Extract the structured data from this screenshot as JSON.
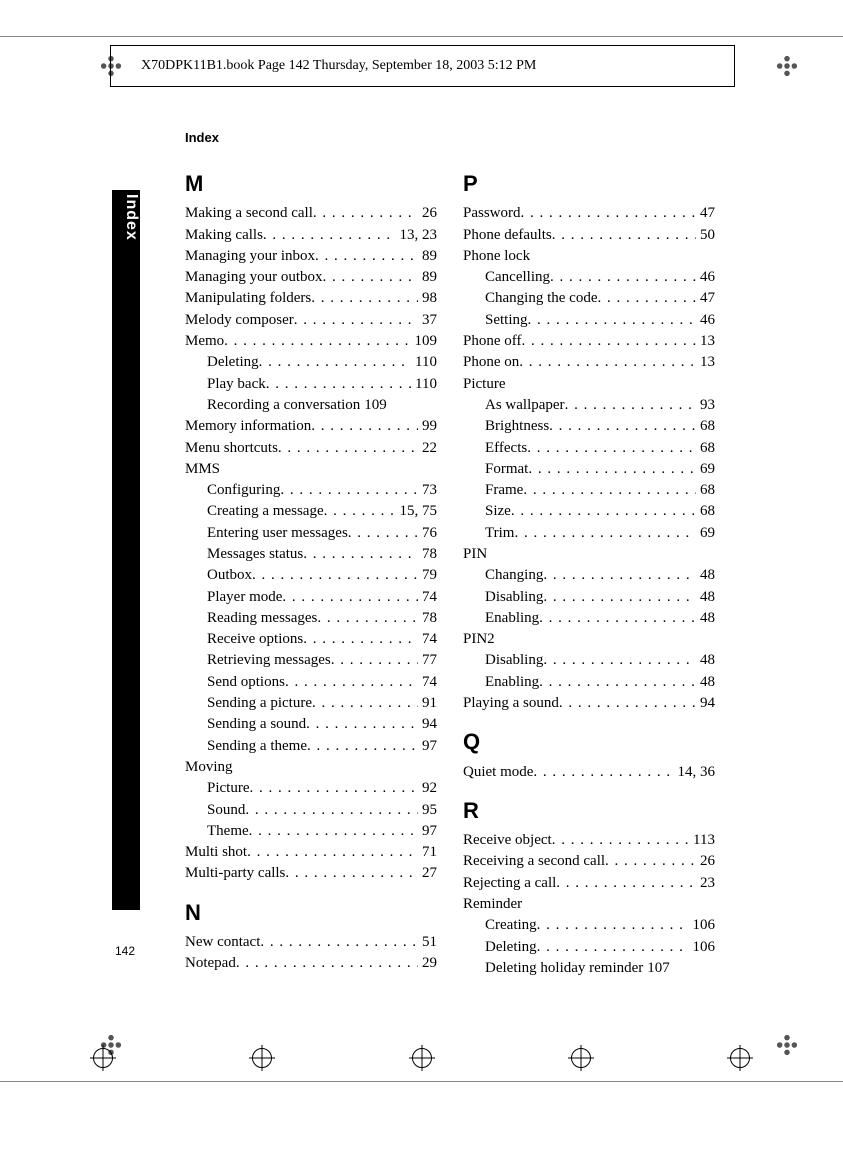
{
  "header": "X70DPK11B1.book  Page 142  Thursday, September 18, 2003  5:12 PM",
  "section": "Index",
  "side_label": "Index",
  "page_number": "142",
  "left": [
    {
      "letter": "M",
      "items": [
        {
          "label": "Making a second call",
          "pg": "26"
        },
        {
          "label": "Making calls",
          "pg": "13, 23"
        },
        {
          "label": "Managing your inbox",
          "pg": "89"
        },
        {
          "label": "Managing your outbox",
          "pg": "89"
        },
        {
          "label": "Manipulating folders",
          "pg": "98"
        },
        {
          "label": "Melody composer",
          "pg": "37"
        },
        {
          "label": "Memo",
          "pg": "109"
        },
        {
          "label": "Deleting",
          "pg": "110",
          "sub": true
        },
        {
          "label": "Play back",
          "pg": "110",
          "sub": true
        },
        {
          "label": "Recording a conversation",
          "pg": "109",
          "sub": true,
          "nodots": true
        },
        {
          "label": "Memory information",
          "pg": "99"
        },
        {
          "label": "Menu shortcuts",
          "pg": "22"
        },
        {
          "label": "MMS",
          "pg": "",
          "nopg": true
        },
        {
          "label": "Configuring",
          "pg": "73",
          "sub": true
        },
        {
          "label": "Creating a message",
          "pg": "15, 75",
          "sub": true
        },
        {
          "label": "Entering user messages",
          "pg": "76",
          "sub": true
        },
        {
          "label": "Messages status",
          "pg": "78",
          "sub": true
        },
        {
          "label": "Outbox",
          "pg": "79",
          "sub": true
        },
        {
          "label": "Player mode",
          "pg": "74",
          "sub": true
        },
        {
          "label": "Reading messages",
          "pg": "78",
          "sub": true
        },
        {
          "label": "Receive options",
          "pg": "74",
          "sub": true
        },
        {
          "label": "Retrieving messages",
          "pg": "77",
          "sub": true
        },
        {
          "label": "Send options",
          "pg": "74",
          "sub": true
        },
        {
          "label": "Sending a picture",
          "pg": "91",
          "sub": true
        },
        {
          "label": "Sending a sound",
          "pg": "94",
          "sub": true
        },
        {
          "label": "Sending a theme",
          "pg": "97",
          "sub": true
        },
        {
          "label": "Moving",
          "pg": "",
          "nopg": true
        },
        {
          "label": "Picture",
          "pg": "92",
          "sub": true
        },
        {
          "label": "Sound",
          "pg": "95",
          "sub": true
        },
        {
          "label": "Theme",
          "pg": "97",
          "sub": true
        },
        {
          "label": "Multi shot",
          "pg": "71"
        },
        {
          "label": "Multi-party calls",
          "pg": "27"
        }
      ]
    },
    {
      "letter": "N",
      "items": [
        {
          "label": "New contact",
          "pg": "51"
        },
        {
          "label": "Notepad",
          "pg": "29"
        }
      ]
    }
  ],
  "right": [
    {
      "letter": "P",
      "items": [
        {
          "label": "Password",
          "pg": "47"
        },
        {
          "label": "Phone defaults",
          "pg": "50"
        },
        {
          "label": "Phone lock",
          "pg": "",
          "nopg": true
        },
        {
          "label": "Cancelling",
          "pg": "46",
          "sub": true
        },
        {
          "label": "Changing the code",
          "pg": "47",
          "sub": true
        },
        {
          "label": "Setting",
          "pg": "46",
          "sub": true
        },
        {
          "label": "Phone off",
          "pg": "13"
        },
        {
          "label": "Phone on",
          "pg": "13"
        },
        {
          "label": "Picture",
          "pg": "",
          "nopg": true
        },
        {
          "label": "As wallpaper",
          "pg": "93",
          "sub": true
        },
        {
          "label": "Brightness",
          "pg": "68",
          "sub": true
        },
        {
          "label": "Effects",
          "pg": "68",
          "sub": true
        },
        {
          "label": "Format",
          "pg": "69",
          "sub": true
        },
        {
          "label": "Frame",
          "pg": "68",
          "sub": true
        },
        {
          "label": "Size",
          "pg": "68",
          "sub": true
        },
        {
          "label": "Trim",
          "pg": "69",
          "sub": true
        },
        {
          "label": "PIN",
          "pg": "",
          "nopg": true
        },
        {
          "label": "Changing",
          "pg": "48",
          "sub": true
        },
        {
          "label": "Disabling",
          "pg": "48",
          "sub": true
        },
        {
          "label": "Enabling",
          "pg": "48",
          "sub": true
        },
        {
          "label": "PIN2",
          "pg": "",
          "nopg": true
        },
        {
          "label": "Disabling",
          "pg": "48",
          "sub": true
        },
        {
          "label": "Enabling",
          "pg": "48",
          "sub": true
        },
        {
          "label": "Playing a sound",
          "pg": "94"
        }
      ]
    },
    {
      "letter": "Q",
      "items": [
        {
          "label": "Quiet mode",
          "pg": "14, 36"
        }
      ]
    },
    {
      "letter": "R",
      "items": [
        {
          "label": "Receive object",
          "pg": "113"
        },
        {
          "label": "Receiving a second call",
          "pg": "26"
        },
        {
          "label": "Rejecting a call",
          "pg": "23"
        },
        {
          "label": "Reminder",
          "pg": "",
          "nopg": true
        },
        {
          "label": "Creating",
          "pg": "106",
          "sub": true
        },
        {
          "label": "Deleting",
          "pg": "106",
          "sub": true
        },
        {
          "label": "Deleting holiday reminder",
          "pg": "107",
          "sub": true,
          "nodots": true
        }
      ]
    }
  ]
}
